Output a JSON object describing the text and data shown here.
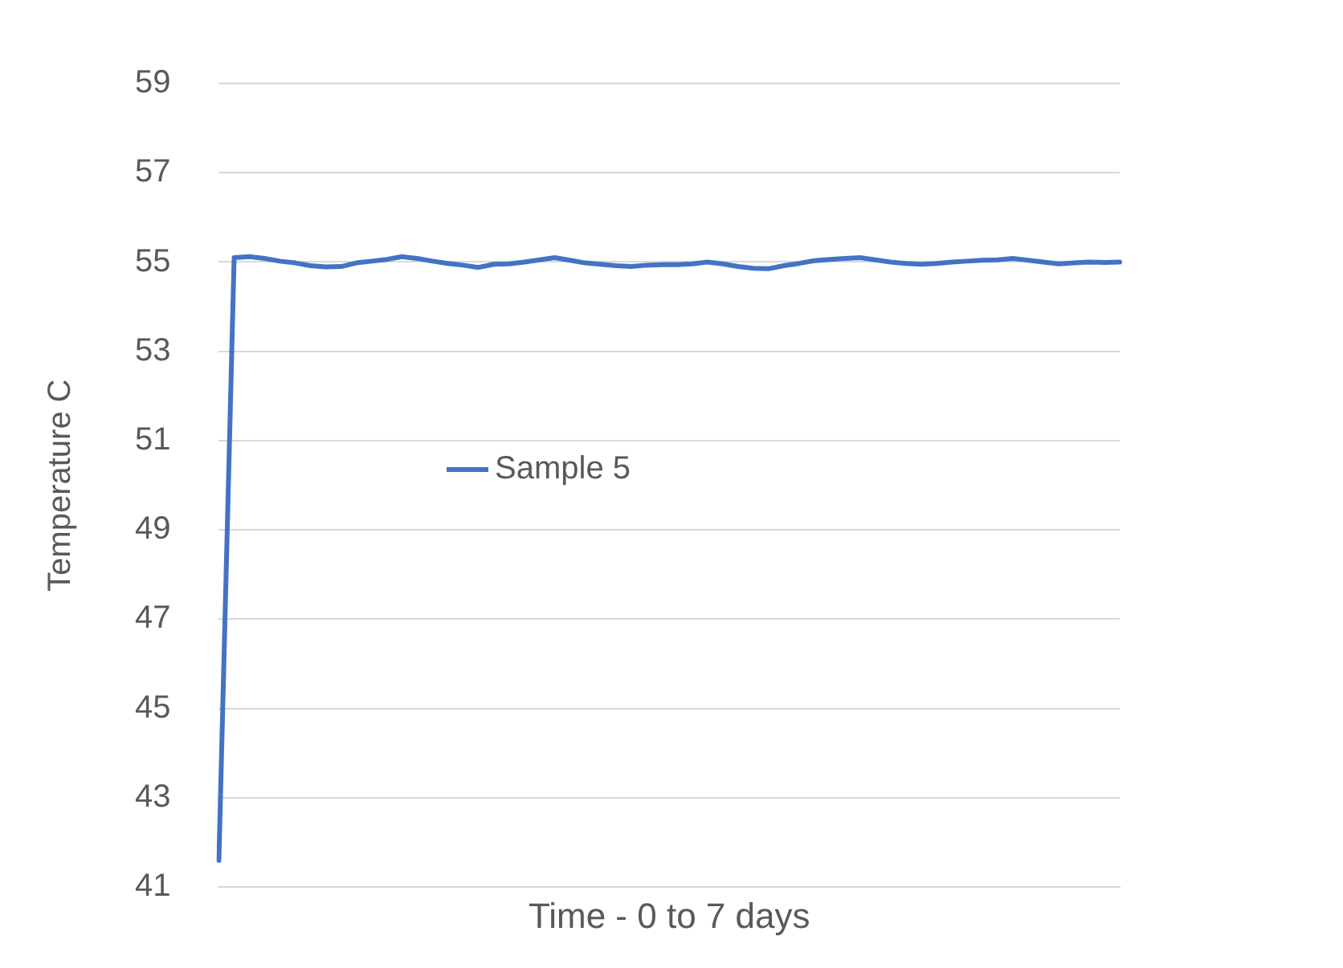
{
  "chart_data": {
    "type": "line",
    "xlabel": "Time - 0 to 7 days",
    "ylabel": "Temperature C",
    "categories": [
      null,
      null,
      null,
      null,
      null,
      null,
      null,
      null,
      null,
      null,
      null,
      null,
      null,
      null,
      null,
      null,
      null,
      null,
      null,
      null,
      null,
      null,
      null,
      null,
      null,
      null,
      null,
      null,
      null,
      null,
      null,
      null,
      null,
      null,
      null,
      null,
      null,
      null,
      null,
      null,
      null,
      null,
      null,
      null,
      null,
      null,
      null,
      null,
      null,
      null,
      null,
      null,
      null,
      null,
      null,
      null,
      null,
      null,
      null,
      null
    ],
    "series": [
      {
        "name": "Sample 5",
        "color": "#4472c4",
        "values": [
          41.6,
          55.1,
          55.12,
          55.08,
          55.02,
          54.98,
          54.92,
          54.89,
          54.9,
          54.98,
          55.02,
          55.06,
          55.12,
          55.08,
          55.02,
          54.97,
          54.93,
          54.88,
          54.95,
          54.96,
          55.0,
          55.05,
          55.1,
          55.04,
          54.98,
          54.95,
          54.92,
          54.9,
          54.93,
          54.94,
          54.94,
          54.96,
          55.0,
          54.96,
          54.9,
          54.86,
          54.85,
          54.92,
          54.97,
          55.03,
          55.06,
          55.08,
          55.1,
          55.05,
          55.0,
          54.97,
          54.95,
          54.97,
          55.0,
          55.02,
          55.04,
          55.05,
          55.08,
          55.04,
          55.0,
          54.96,
          54.98,
          55.0,
          54.99,
          55.0
        ]
      }
    ],
    "ylim": [
      41,
      59
    ],
    "yticks": [
      41,
      43,
      45,
      47,
      49,
      51,
      53,
      55,
      57,
      59
    ],
    "grid": "y",
    "legend": "left",
    "tick_labels": "y",
    "marker": "none",
    "line_style": "solid"
  }
}
